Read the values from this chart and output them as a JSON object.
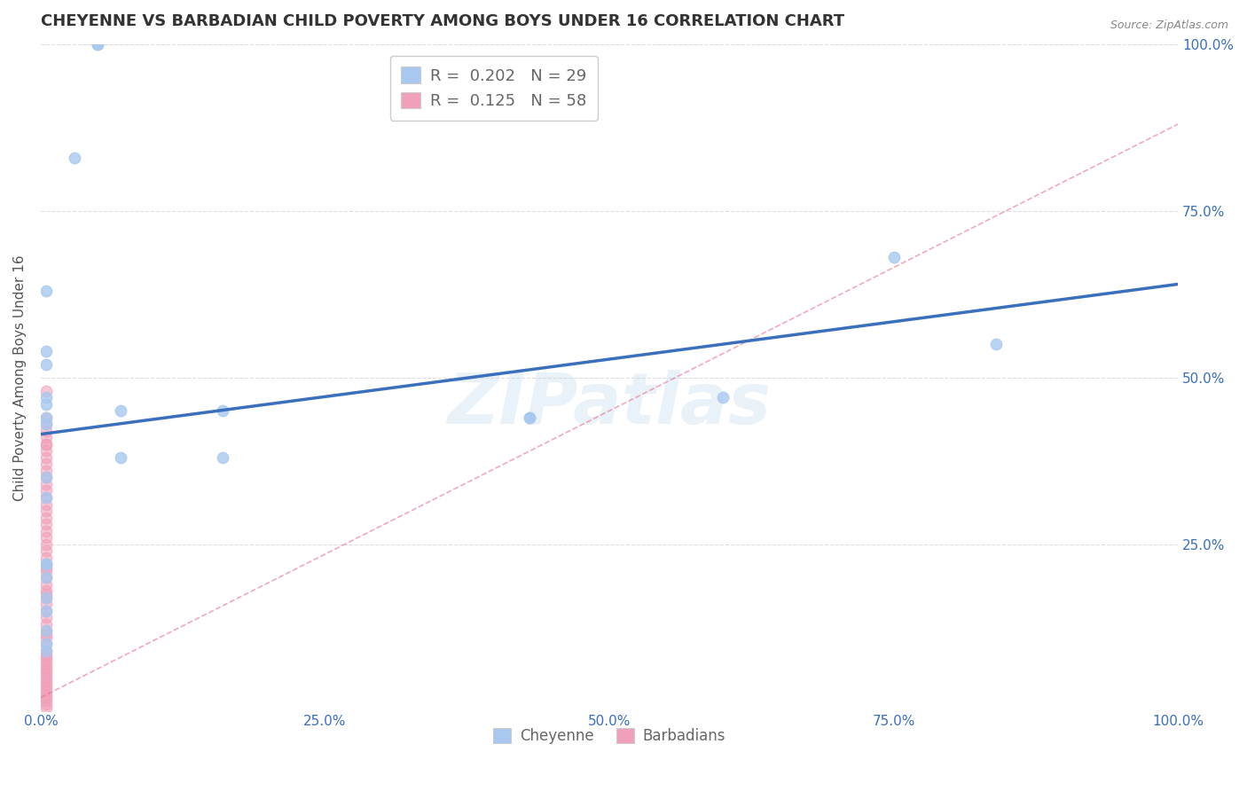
{
  "title": "CHEYENNE VS BARBADIAN CHILD POVERTY AMONG BOYS UNDER 16 CORRELATION CHART",
  "source": "Source: ZipAtlas.com",
  "ylabel": "Child Poverty Among Boys Under 16",
  "watermark": "ZIPatlas",
  "cheyenne_R": 0.202,
  "cheyenne_N": 29,
  "barbadian_R": 0.125,
  "barbadian_N": 58,
  "cheyenne_color": "#a8c8f0",
  "barbadian_color": "#f0a0b8",
  "cheyenne_line_color": "#3a6fbd",
  "barbadian_line_color": "#e87090",
  "cheyenne_x": [
    0.03,
    0.05,
    0.05,
    0.005,
    0.005,
    0.005,
    0.005,
    0.005,
    0.005,
    0.005,
    0.005,
    0.005,
    0.005,
    0.005,
    0.005,
    0.005,
    0.005,
    0.07,
    0.07,
    0.16,
    0.16,
    0.43,
    0.43,
    0.6,
    0.75,
    0.84,
    0.005,
    0.005,
    0.005
  ],
  "cheyenne_y": [
    0.83,
    1.0,
    1.0,
    0.63,
    0.54,
    0.52,
    0.47,
    0.46,
    0.44,
    0.43,
    0.35,
    0.32,
    0.22,
    0.2,
    0.17,
    0.15,
    0.12,
    0.45,
    0.38,
    0.45,
    0.38,
    0.44,
    0.44,
    0.47,
    0.68,
    0.55,
    0.09,
    0.1,
    0.22
  ],
  "barbadian_x": [
    0.005,
    0.005,
    0.005,
    0.005,
    0.005,
    0.005,
    0.005,
    0.005,
    0.005,
    0.005,
    0.005,
    0.005,
    0.005,
    0.005,
    0.005,
    0.005,
    0.005,
    0.005,
    0.005,
    0.005,
    0.005,
    0.005,
    0.005,
    0.005,
    0.005,
    0.005,
    0.005,
    0.005,
    0.005,
    0.005,
    0.005,
    0.005,
    0.005,
    0.005,
    0.005,
    0.005,
    0.005,
    0.005,
    0.005,
    0.005,
    0.005,
    0.005,
    0.005,
    0.005,
    0.005,
    0.005,
    0.005,
    0.005,
    0.005,
    0.005,
    0.005,
    0.005,
    0.005,
    0.005,
    0.005,
    0.005,
    0.005,
    0.005
  ],
  "barbadian_y": [
    0.48,
    0.44,
    0.43,
    0.42,
    0.41,
    0.4,
    0.4,
    0.39,
    0.38,
    0.37,
    0.36,
    0.35,
    0.34,
    0.33,
    0.32,
    0.31,
    0.3,
    0.29,
    0.28,
    0.27,
    0.26,
    0.25,
    0.24,
    0.23,
    0.22,
    0.215,
    0.21,
    0.2,
    0.19,
    0.18,
    0.175,
    0.17,
    0.16,
    0.15,
    0.14,
    0.13,
    0.12,
    0.115,
    0.11,
    0.1,
    0.09,
    0.085,
    0.08,
    0.075,
    0.07,
    0.065,
    0.06,
    0.055,
    0.05,
    0.045,
    0.04,
    0.035,
    0.03,
    0.025,
    0.02,
    0.015,
    0.01,
    0.005
  ],
  "cheyenne_line_x": [
    0.0,
    1.0
  ],
  "cheyenne_line_y": [
    0.415,
    0.64
  ],
  "barbadian_line_x": [
    0.0,
    1.0
  ],
  "barbadian_line_y": [
    0.02,
    0.88
  ],
  "xlim": [
    0.0,
    1.0
  ],
  "ylim": [
    0.0,
    1.0
  ],
  "xticks": [
    0.0,
    0.25,
    0.5,
    0.75,
    1.0
  ],
  "xticklabels": [
    "0.0%",
    "25.0%",
    "50.0%",
    "75.0%",
    "100.0%"
  ],
  "yticks_right": [
    0.25,
    0.5,
    0.75,
    1.0
  ],
  "yticklabels_right": [
    "25.0%",
    "50.0%",
    "75.0%",
    "100.0%"
  ],
  "title_fontsize": 13,
  "axis_fontsize": 11,
  "tick_fontsize": 11,
  "marker_size": 80,
  "background_color": "#ffffff",
  "grid_color": "#dddddd"
}
